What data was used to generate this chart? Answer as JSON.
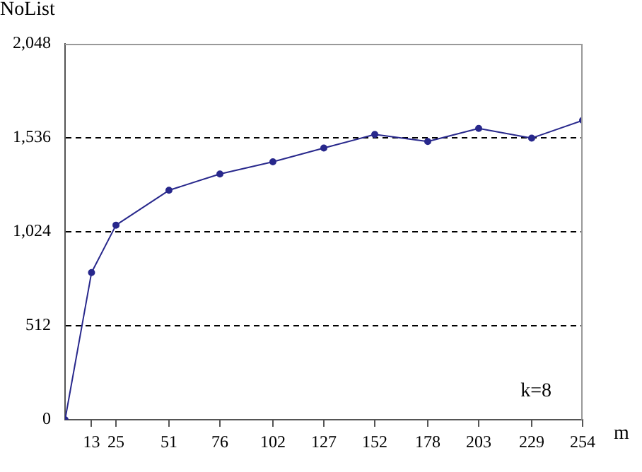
{
  "chart_data": {
    "type": "line",
    "xlabel": "m",
    "ylabel": "NoList",
    "x": [
      0,
      13,
      25,
      51,
      76,
      102,
      127,
      152,
      178,
      203,
      229,
      254
    ],
    "series": [
      {
        "color": "#28288c",
        "values": [
          0,
          802,
          1060,
          1250,
          1339,
          1405,
          1480,
          1554,
          1516,
          1587,
          1534,
          1631
        ]
      }
    ],
    "xlim": [
      0,
      254
    ],
    "xticks": [
      13,
      25,
      51,
      76,
      102,
      127,
      152,
      178,
      203,
      229,
      254
    ],
    "ylim": [
      0,
      2048
    ],
    "yticks": [
      {
        "value": 0,
        "label": "0"
      },
      {
        "value": 512,
        "label": "512"
      },
      {
        "value": 1024,
        "label": "1,024"
      },
      {
        "value": 1536,
        "label": "1,536"
      },
      {
        "value": 2048,
        "label": "2,048"
      }
    ],
    "grid": "y",
    "line_style": "solid",
    "marker": "circle",
    "legend": false,
    "annotations": [
      "k=8"
    ]
  }
}
